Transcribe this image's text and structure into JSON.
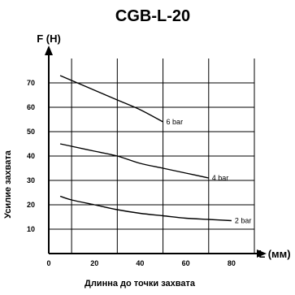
{
  "chart_data": {
    "type": "line",
    "title": "CGB-L-20",
    "y_axis_title": "F (H)",
    "x_axis_title": "L (мм)",
    "ylabel": "Усилие захвата",
    "xlabel": "Длинна до точки захвата",
    "xlim": [
      0,
      90
    ],
    "ylim": [
      0,
      80
    ],
    "x_ticks": [
      0,
      20,
      40,
      60,
      80
    ],
    "y_ticks": [
      10,
      20,
      30,
      40,
      50,
      60,
      70
    ],
    "x_grid": [
      10,
      30,
      50,
      70,
      90
    ],
    "y_grid": [
      10,
      20,
      30,
      40,
      50,
      60,
      70
    ],
    "series": [
      {
        "name": "6 bar",
        "x": [
          5,
          10,
          20,
          30,
          40,
          50
        ],
        "y": [
          73,
          71,
          67,
          63,
          59,
          54
        ]
      },
      {
        "name": "4 bar",
        "x": [
          5,
          10,
          20,
          30,
          40,
          50,
          60,
          70
        ],
        "y": [
          45,
          44,
          42,
          40,
          37,
          35,
          33,
          31
        ]
      },
      {
        "name": "2 bar",
        "x": [
          5,
          10,
          20,
          30,
          40,
          50,
          60,
          70,
          80
        ],
        "y": [
          23.5,
          22,
          20,
          18,
          16.5,
          15.5,
          14.5,
          14,
          13.5
        ]
      }
    ]
  }
}
